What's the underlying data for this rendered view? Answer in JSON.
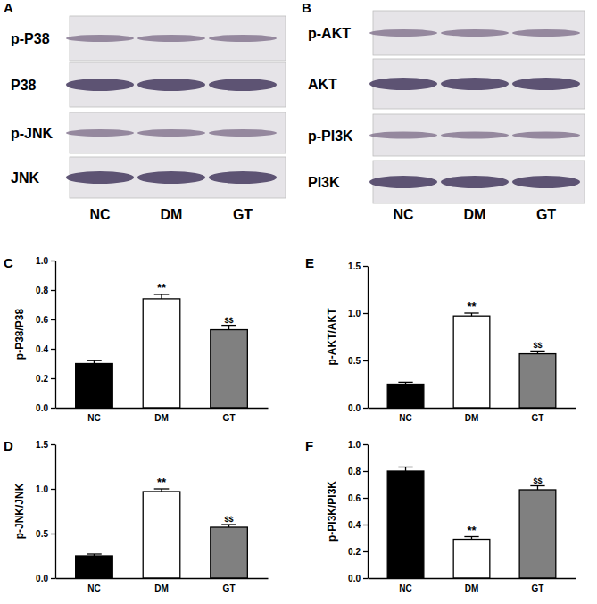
{
  "blots": [
    {
      "annotation": "A",
      "rows": [
        "p-P38",
        "P38",
        "p-JNK",
        "JNK"
      ],
      "lanes": [
        "NC",
        "DM",
        "GT"
      ]
    },
    {
      "annotation": "B",
      "rows": [
        "p-AKT",
        "AKT",
        "p-PI3K",
        "PI3K"
      ],
      "lanes": [
        "NC",
        "DM",
        "GT"
      ]
    }
  ],
  "chart_data": [
    {
      "type": "bar",
      "annotations": [
        "C"
      ],
      "ylabel": "p-P38/P38",
      "categories": [
        "NC",
        "DM",
        "GT"
      ],
      "values": [
        0.3,
        0.74,
        0.53
      ],
      "errors": [
        0.02,
        0.03,
        0.03
      ],
      "significance": [
        null,
        "**",
        "$$"
      ],
      "colors": [
        "#000000",
        "#ffffff",
        "#808080"
      ],
      "ylim": [
        0,
        1.0
      ],
      "yticks": [
        {
          "value": 0,
          "label": "0.0"
        },
        0.2,
        0.4,
        0.6,
        0.8,
        {
          "value": 1,
          "label": "1.0"
        }
      ],
      "grid": false
    },
    {
      "type": "bar",
      "annotations": [
        "D"
      ],
      "ylabel": "p-JNK/JNK",
      "categories": [
        "NC",
        "DM",
        "GT"
      ],
      "values": [
        0.25,
        0.97,
        0.57
      ],
      "errors": [
        0.02,
        0.03,
        0.03
      ],
      "significance": [
        null,
        "**",
        "$$"
      ],
      "colors": [
        "#000000",
        "#ffffff",
        "#808080"
      ],
      "ylim": [
        0,
        1.5
      ],
      "yticks": [
        {
          "value": 0,
          "label": "0.0"
        },
        0.5,
        {
          "value": 1,
          "label": "1.0"
        },
        1.5
      ],
      "grid": false
    },
    {
      "type": "bar",
      "annotations": [
        "E"
      ],
      "ylabel": "p-AKT/AKT",
      "categories": [
        "NC",
        "DM",
        "GT"
      ],
      "values": [
        0.25,
        0.97,
        0.57
      ],
      "errors": [
        0.02,
        0.03,
        0.03
      ],
      "significance": [
        null,
        "**",
        "$$"
      ],
      "colors": [
        "#000000",
        "#ffffff",
        "#808080"
      ],
      "ylim": [
        0,
        1.5
      ],
      "yticks": [
        {
          "value": 0,
          "label": "0.0"
        },
        0.5,
        {
          "value": 1,
          "label": "1.0"
        },
        1.5
      ],
      "grid": false
    },
    {
      "type": "bar",
      "annotations": [
        "F"
      ],
      "ylabel": "p-PI3K/PI3K",
      "categories": [
        "NC",
        "DM",
        "GT"
      ],
      "values": [
        0.8,
        0.29,
        0.66
      ],
      "errors": [
        0.03,
        0.02,
        0.03
      ],
      "significance": [
        null,
        "**",
        "$$"
      ],
      "colors": [
        "#000000",
        "#ffffff",
        "#808080"
      ],
      "ylim": [
        0,
        1.0
      ],
      "yticks": [
        {
          "value": 0,
          "label": "0.0"
        },
        0.2,
        0.4,
        0.6,
        0.8,
        {
          "value": 1,
          "label": "1.0"
        }
      ],
      "grid": false
    }
  ]
}
